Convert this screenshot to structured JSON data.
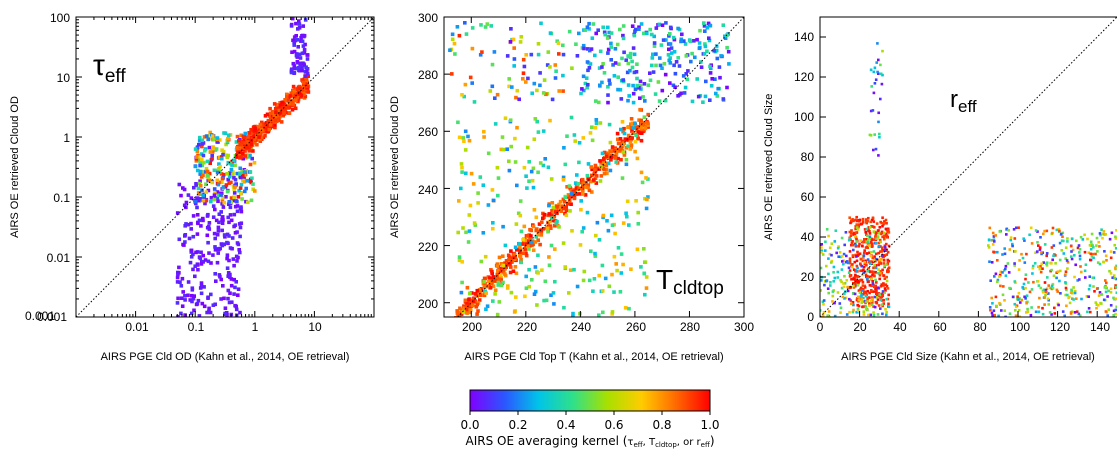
{
  "chart_data": [
    {
      "type": "scatter",
      "xlabel": "AIRS PGE Cld OD (Kahn et al., 2014, OE retrieval)",
      "ylabel": "AIRS OE retrieved Cloud OD",
      "annotation": {
        "main": "τ",
        "sub": "eff"
      },
      "xscale": "log",
      "yscale": "log",
      "xlim": [
        0.001,
        100
      ],
      "ylim": [
        0.001,
        100
      ],
      "xticks": [
        "0.001",
        "0.01",
        "0.1",
        "1",
        "10"
      ],
      "yticks": [
        "0.001",
        "0.01",
        "0.1",
        "1",
        "10",
        "100"
      ],
      "one_to_one_line": true,
      "clusters": [
        {
          "x_range": [
            0.05,
            0.6
          ],
          "y_range": [
            0.001,
            0.2
          ],
          "kernel": [
            0.0,
            0.08
          ],
          "points": 260
        },
        {
          "x_range": [
            0.1,
            1.0
          ],
          "y_range": [
            0.08,
            1.2
          ],
          "kernel": [
            0.0,
            1.0
          ],
          "points": 260
        },
        {
          "x_range": [
            0.5,
            8.0
          ],
          "y_range": [
            0.4,
            8.0
          ],
          "kernel": [
            0.85,
            1.0
          ],
          "points": 420
        },
        {
          "x_range": [
            4.0,
            8.0
          ],
          "y_range": [
            10,
            100
          ],
          "kernel": [
            0.0,
            0.1
          ],
          "points": 70
        }
      ]
    },
    {
      "type": "scatter",
      "xlabel": "AIRS PGE Cld Top T (Kahn et al., 2014, OE retrieval)",
      "ylabel": "AIRS OE retrieved Cloud OD",
      "annotation": {
        "main": "T",
        "sub": "cldtop"
      },
      "xlim": [
        190,
        300
      ],
      "ylim": [
        195,
        300
      ],
      "xticks": [
        "200",
        "220",
        "240",
        "260",
        "280",
        "300"
      ],
      "yticks": [
        "200",
        "220",
        "240",
        "260",
        "280",
        "300"
      ],
      "one_to_one_line": true,
      "clusters": [
        {
          "x_range": [
            195,
            265
          ],
          "y_range": [
            195,
            265
          ],
          "kernel": [
            0.8,
            1.0
          ],
          "points": 500,
          "along_diagonal": true
        },
        {
          "x_range": [
            195,
            265
          ],
          "y_range": [
            195,
            265
          ],
          "kernel": [
            0.2,
            0.8
          ],
          "points": 300
        },
        {
          "x_range": [
            240,
            295
          ],
          "y_range": [
            270,
            298
          ],
          "kernel": [
            0.0,
            0.5
          ],
          "points": 260
        },
        {
          "x_range": [
            192,
            240
          ],
          "y_range": [
            270,
            298
          ],
          "kernel": [
            0.0,
            1.0
          ],
          "points": 90
        }
      ]
    },
    {
      "type": "scatter",
      "xlabel": "AIRS PGE Cld Size (Kahn et al., 2014, OE retrieval)",
      "ylabel": "AIRS OE retrieved Cloud Size",
      "annotation": {
        "main": "r",
        "sub": "eff"
      },
      "xlim": [
        0,
        150
      ],
      "ylim": [
        0,
        150
      ],
      "xticks": [
        "0",
        "20",
        "40",
        "60",
        "80",
        "100",
        "120",
        "140"
      ],
      "yticks": [
        "0",
        "20",
        "40",
        "60",
        "80",
        "100",
        "120",
        "140"
      ],
      "one_to_one_line": true,
      "clusters": [
        {
          "x_range": [
            15,
            35
          ],
          "y_range": [
            5,
            50
          ],
          "kernel": [
            0.9,
            1.0
          ],
          "points": 380
        },
        {
          "x_range": [
            0,
            35
          ],
          "y_range": [
            0,
            45
          ],
          "kernel": [
            0.0,
            0.8
          ],
          "points": 220
        },
        {
          "x_range": [
            25,
            32
          ],
          "y_range": [
            80,
            138
          ],
          "kernel": [
            0.0,
            0.6
          ],
          "points": 30
        },
        {
          "x_range": [
            85,
            150
          ],
          "y_range": [
            0,
            45
          ],
          "kernel": [
            0.0,
            1.0
          ],
          "points": 420
        }
      ]
    }
  ],
  "colorbar": {
    "ticks": [
      "0.0",
      "0.2",
      "0.4",
      "0.6",
      "0.8",
      "1.0"
    ],
    "label_prefix": "AIRS OE averaging kernel (",
    "label_parts": [
      {
        "t": "τ",
        "s": "eff"
      },
      {
        "sep": ", "
      },
      {
        "t": "T",
        "s": "cldtop"
      },
      {
        "sep": ", or "
      },
      {
        "t": "r",
        "s": "eff"
      }
    ],
    "label_suffix": ")",
    "colormap": [
      "#8000ff",
      "#2c55ff",
      "#00c4e8",
      "#2fe08a",
      "#a8e000",
      "#ffcc00",
      "#ff6a00",
      "#ff0000"
    ]
  }
}
